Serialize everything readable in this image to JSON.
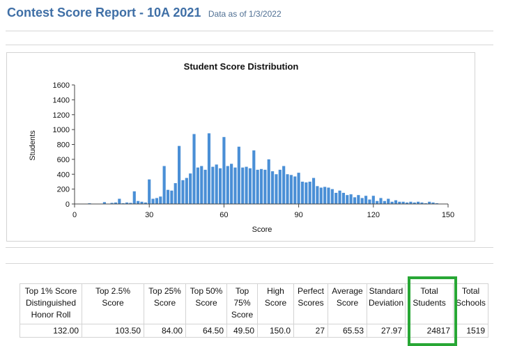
{
  "header": {
    "title": "Contest Score Report -  10A 2021",
    "as_of": "Data as of 1/3/2022"
  },
  "chart_data": {
    "type": "bar",
    "title": "Student Score Distribution",
    "xlabel": "Score",
    "ylabel": "Students",
    "xlim": [
      0,
      150
    ],
    "ylim": [
      0,
      1600
    ],
    "xticks": [
      "0",
      "30",
      "60",
      "90",
      "120",
      "150"
    ],
    "yticks": [
      "0",
      "200",
      "400",
      "600",
      "800",
      "1000",
      "1200",
      "1400",
      "1600"
    ],
    "color": "#4a8fd6",
    "x": [
      6,
      12,
      15,
      16.5,
      18,
      19.5,
      21,
      22.5,
      24,
      25.5,
      27,
      28.5,
      30,
      31.5,
      33,
      34.5,
      36,
      37.5,
      39,
      40.5,
      42,
      43.5,
      45,
      46.5,
      48,
      49.5,
      51,
      52.5,
      54,
      55.5,
      57,
      58.5,
      60,
      61.5,
      63,
      64.5,
      66,
      67.5,
      69,
      70.5,
      72,
      73.5,
      75,
      76.5,
      78,
      79.5,
      81,
      82.5,
      84,
      85.5,
      87,
      88.5,
      90,
      91.5,
      93,
      94.5,
      96,
      97.5,
      99,
      100.5,
      102,
      103.5,
      105,
      106.5,
      108,
      109.5,
      111,
      112.5,
      114,
      115.5,
      117,
      118.5,
      120,
      121.5,
      123,
      124.5,
      126,
      127.5,
      129,
      130.5,
      132,
      133.5,
      135,
      136.5,
      138,
      139.5,
      141,
      142.5,
      144,
      145.5
    ],
    "values": [
      10,
      25,
      15,
      20,
      70,
      10,
      20,
      15,
      170,
      40,
      30,
      20,
      330,
      70,
      80,
      100,
      510,
      190,
      180,
      280,
      780,
      320,
      350,
      410,
      940,
      490,
      510,
      460,
      950,
      500,
      530,
      480,
      900,
      510,
      540,
      490,
      770,
      490,
      500,
      480,
      720,
      460,
      470,
      460,
      600,
      440,
      400,
      460,
      510,
      400,
      390,
      370,
      420,
      300,
      290,
      300,
      350,
      240,
      220,
      230,
      220,
      200,
      150,
      180,
      150,
      120,
      130,
      90,
      120,
      80,
      110,
      60,
      110,
      40,
      80,
      40,
      70,
      30,
      50,
      30,
      30,
      20,
      30,
      20,
      30,
      20,
      10,
      30,
      20,
      10
    ]
  },
  "stats": {
    "headers": [
      "Top 1% Score Distinguished Honor Roll",
      "Top 2.5% Score",
      "Top 25% Score",
      "Top 50% Score",
      "Top 75% Score",
      "High Score",
      "Perfect Scores",
      "Average Score",
      "Standard Deviation",
      "Total Students",
      "Total Schools"
    ],
    "values": [
      "132.00",
      "103.50",
      "84.00",
      "64.50",
      "49.50",
      "150.0",
      "27",
      "65.53",
      "27.97",
      "24817",
      "1519"
    ]
  },
  "colors": {
    "title": "#3f6fa6",
    "bar": "#4a8fd6",
    "highlight": "#28a735"
  }
}
